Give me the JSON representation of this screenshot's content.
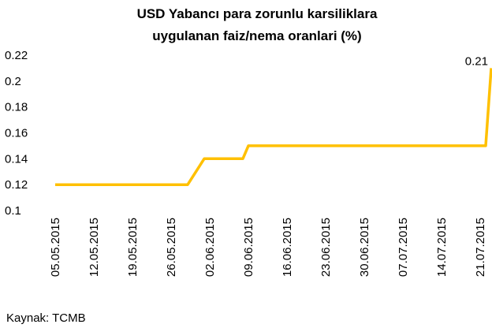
{
  "chart_data": {
    "type": "line",
    "title": "USD Yabancı para zorunlu karsiliklara uygulanan faiz/nema oranlari (%)",
    "x": [
      "05.05.2015",
      "29.05.2015",
      "01.06.2015",
      "08.06.2015",
      "09.06.2015",
      "22.07.2015",
      "23.07.2015"
    ],
    "series": [
      {
        "name": "USD",
        "color": "#ffc000",
        "values": [
          0.12,
          0.12,
          0.14,
          0.14,
          0.15,
          0.15,
          0.21
        ]
      }
    ],
    "data_label_index": 6,
    "xlim": [
      "05.05.2015",
      "23.07.2015"
    ],
    "xticks": [
      "05.05.2015",
      "12.05.2015",
      "19.05.2015",
      "26.05.2015",
      "02.06.2015",
      "09.06.2015",
      "16.06.2015",
      "23.06.2015",
      "30.06.2015",
      "07.07.2015",
      "14.07.2015",
      "21.07.2015"
    ],
    "ylim": [
      0.1,
      0.22
    ],
    "yticks": [
      0.1,
      0.12,
      0.14,
      0.16,
      0.18,
      0.2,
      0.22
    ],
    "grid": false,
    "source": "Kaynak: TCMB"
  }
}
